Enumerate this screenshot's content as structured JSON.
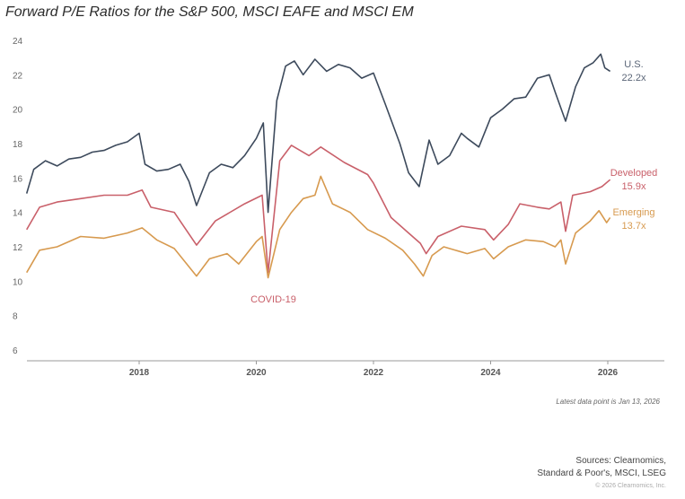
{
  "chart_data": {
    "type": "line",
    "title": "Forward P/E Ratios for the S&P 500, MSCI EAFE and MSCI EM",
    "xlabel": "",
    "ylabel": "",
    "ylim": [
      6,
      24
    ],
    "xlim": [
      2016.08,
      2027.0
    ],
    "yticks": [
      "6",
      "8",
      "10",
      "12",
      "14",
      "16",
      "18",
      "20",
      "22",
      "24"
    ],
    "xticks": [
      "2018",
      "2020",
      "2022",
      "2024",
      "2026"
    ],
    "grid": false,
    "series": [
      {
        "name": "U.S.",
        "end_label": "22.2x",
        "color": "#3d4a5c",
        "x": [
          2016.08,
          2016.2,
          2016.4,
          2016.6,
          2016.8,
          2017.0,
          2017.2,
          2017.4,
          2017.6,
          2017.8,
          2018.0,
          2018.1,
          2018.3,
          2018.5,
          2018.7,
          2018.85,
          2018.98,
          2019.2,
          2019.4,
          2019.6,
          2019.8,
          2020.0,
          2020.12,
          2020.2,
          2020.35,
          2020.5,
          2020.65,
          2020.8,
          2021.0,
          2021.2,
          2021.4,
          2021.6,
          2021.8,
          2022.0,
          2022.2,
          2022.45,
          2022.6,
          2022.78,
          2022.95,
          2023.1,
          2023.3,
          2023.5,
          2023.6,
          2023.8,
          2024.0,
          2024.2,
          2024.4,
          2024.6,
          2024.8,
          2025.0,
          2025.1,
          2025.28,
          2025.45,
          2025.6,
          2025.75,
          2025.88,
          2025.95,
          2026.04
        ],
        "y": [
          15.1,
          16.5,
          17.0,
          16.7,
          17.1,
          17.2,
          17.5,
          17.6,
          17.9,
          18.1,
          18.6,
          16.8,
          16.4,
          16.5,
          16.8,
          15.8,
          14.4,
          16.3,
          16.8,
          16.6,
          17.3,
          18.3,
          19.2,
          14.0,
          20.5,
          22.5,
          22.8,
          22.0,
          22.9,
          22.2,
          22.6,
          22.4,
          21.8,
          22.1,
          20.3,
          18.0,
          16.3,
          15.5,
          18.2,
          16.8,
          17.3,
          18.6,
          18.3,
          17.8,
          19.5,
          20.0,
          20.6,
          20.7,
          21.8,
          22.0,
          21.0,
          19.3,
          21.3,
          22.4,
          22.7,
          23.2,
          22.4,
          22.2
        ]
      },
      {
        "name": "Developed",
        "end_label": "15.9x",
        "color": "#c9606a",
        "x": [
          2016.08,
          2016.3,
          2016.6,
          2017.0,
          2017.4,
          2017.8,
          2018.05,
          2018.2,
          2018.6,
          2018.98,
          2019.3,
          2019.8,
          2020.1,
          2020.2,
          2020.4,
          2020.6,
          2020.9,
          2021.1,
          2021.5,
          2021.9,
          2022.0,
          2022.3,
          2022.6,
          2022.8,
          2022.9,
          2023.1,
          2023.5,
          2023.9,
          2024.05,
          2024.3,
          2024.5,
          2024.8,
          2025.0,
          2025.2,
          2025.28,
          2025.4,
          2025.7,
          2025.9,
          2026.04
        ],
        "y": [
          13.0,
          14.3,
          14.6,
          14.8,
          15.0,
          15.0,
          15.3,
          14.3,
          14.0,
          12.1,
          13.5,
          14.5,
          15.0,
          10.5,
          17.0,
          17.9,
          17.3,
          17.8,
          16.9,
          16.2,
          15.7,
          13.7,
          12.8,
          12.2,
          11.6,
          12.6,
          13.2,
          13.0,
          12.4,
          13.3,
          14.5,
          14.3,
          14.2,
          14.6,
          12.9,
          15.0,
          15.2,
          15.5,
          15.9
        ]
      },
      {
        "name": "Emerging",
        "end_label": "13.7x",
        "color": "#d79a4f",
        "x": [
          2016.08,
          2016.3,
          2016.6,
          2017.0,
          2017.4,
          2017.8,
          2018.05,
          2018.3,
          2018.6,
          2018.98,
          2019.2,
          2019.5,
          2019.7,
          2020.0,
          2020.1,
          2020.2,
          2020.4,
          2020.6,
          2020.8,
          2021.0,
          2021.1,
          2021.3,
          2021.6,
          2021.9,
          2022.2,
          2022.5,
          2022.7,
          2022.85,
          2023.0,
          2023.2,
          2023.6,
          2023.9,
          2024.05,
          2024.3,
          2024.6,
          2024.9,
          2025.1,
          2025.2,
          2025.28,
          2025.45,
          2025.7,
          2025.85,
          2025.98,
          2026.04
        ],
        "y": [
          10.5,
          11.8,
          12.0,
          12.6,
          12.5,
          12.8,
          13.1,
          12.4,
          11.9,
          10.3,
          11.3,
          11.6,
          11.0,
          12.3,
          12.6,
          10.2,
          13.0,
          14.0,
          14.8,
          15.0,
          16.1,
          14.5,
          14.0,
          13.0,
          12.5,
          11.8,
          11.0,
          10.3,
          11.5,
          12.0,
          11.6,
          11.9,
          11.3,
          12.0,
          12.4,
          12.3,
          12.0,
          12.4,
          11.0,
          12.8,
          13.5,
          14.1,
          13.4,
          13.7
        ]
      }
    ],
    "annotations": [
      {
        "text": "COVID-19",
        "x": 2020.2
      }
    ],
    "note": "Latest data point is Jan 13, 2026"
  },
  "footer": {
    "sources_line1": "Sources: Clearnomics,",
    "sources_line2": "Standard & Poor's, MSCI, LSEG",
    "copyright": "© 2026 Clearnomics, Inc."
  }
}
